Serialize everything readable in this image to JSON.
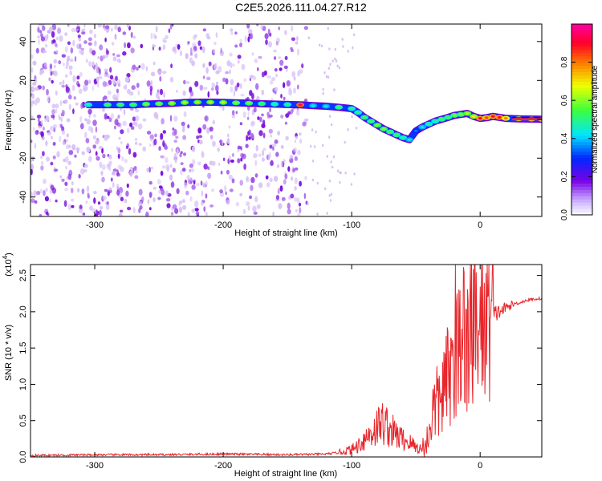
{
  "title": "C2E5.2026.111.04.27.R12",
  "colors": {
    "line": "#e8262b",
    "axis": "#000000",
    "track_low": "#7b00e0",
    "track_high": "#ff1a60"
  },
  "chart_data": [
    {
      "type": "heatmap",
      "xlabel": "Height of straight line (km)",
      "ylabel": "Frequency (Hz)",
      "xlim": [
        -350,
        48
      ],
      "ylim": [
        -50,
        49
      ],
      "xticks": [
        -300,
        -200,
        -100,
        0
      ],
      "xtick_labels": [
        "-300",
        "-200",
        "-100",
        "0"
      ],
      "yticks": [
        -40,
        -20,
        0,
        20,
        40
      ],
      "ytick_labels": [
        "-40",
        "-20",
        "0",
        "20",
        "40"
      ],
      "colorbar": {
        "label": "Normalized spectral amplitude",
        "range": [
          0,
          1
        ],
        "ticks": [
          0.0,
          0.2,
          0.4,
          0.6,
          0.8
        ],
        "tick_labels": [
          "0.0",
          "0.2",
          "0.4",
          "0.6",
          "0.8"
        ]
      },
      "track": {
        "x": [
          -305,
          -290,
          -280,
          -270,
          -260,
          -250,
          -240,
          -230,
          -220,
          -210,
          -200,
          -190,
          -180,
          -170,
          -160,
          -150,
          -140,
          -130,
          -120,
          -110,
          -100,
          -95,
          -90,
          -85,
          -80,
          -75,
          -70,
          -65,
          -60,
          -55,
          -50,
          -45,
          -40,
          -35,
          -30,
          -25,
          -20,
          -15,
          -10,
          -5,
          0,
          5,
          10,
          15,
          20,
          30,
          40,
          48
        ],
        "y": [
          7.5,
          7.5,
          7.5,
          7.5,
          7.8,
          8.0,
          8.2,
          8.6,
          8.8,
          8.8,
          8.7,
          8.5,
          8.3,
          8.0,
          7.8,
          7.6,
          7.4,
          7.0,
          6.7,
          6.2,
          5.5,
          3.5,
          1.0,
          -1.0,
          -3.0,
          -5.0,
          -6.5,
          -8.0,
          -9.5,
          -10.5,
          -6.0,
          -4.0,
          -2.5,
          -1.0,
          0.0,
          1.0,
          2.0,
          2.5,
          3.0,
          1.5,
          0.5,
          0.8,
          1.5,
          1.0,
          0.5,
          0.2,
          0.1,
          0.0
        ],
        "amplitude": [
          0.5,
          0.55,
          0.55,
          0.55,
          0.6,
          0.6,
          0.65,
          0.65,
          0.65,
          0.65,
          0.65,
          0.6,
          0.6,
          0.55,
          0.5,
          0.5,
          0.95,
          0.45,
          0.45,
          0.55,
          0.5,
          0.5,
          0.55,
          0.55,
          0.6,
          0.6,
          0.55,
          0.55,
          0.5,
          0.45,
          0.35,
          0.45,
          0.5,
          0.5,
          0.55,
          0.55,
          0.6,
          0.6,
          0.65,
          0.7,
          0.9,
          0.85,
          0.9,
          0.9,
          0.8,
          0.75,
          0.75,
          0.75
        ]
      }
    },
    {
      "type": "line",
      "xlabel": "Height of straight line (km)",
      "ylabel": "SNR (10 * v/v)",
      "scale_note": "(x10",
      "scale_exp": "4",
      "scale_close": ")",
      "xlim": [
        -350,
        48
      ],
      "ylim": [
        0,
        2.65
      ],
      "xticks": [
        -300,
        -200,
        -100,
        0
      ],
      "xtick_labels": [
        "-300",
        "-200",
        "-100",
        "0"
      ],
      "yticks": [
        0.0,
        0.5,
        1.0,
        1.5,
        2.0,
        2.5
      ],
      "ytick_labels": [
        "0.0",
        "0.5",
        "1.0",
        "1.5",
        "2.0",
        "2.5"
      ],
      "series": [
        {
          "name": "SNR",
          "x": [
            -350,
            -300,
            -250,
            -200,
            -150,
            -120,
            -110,
            -100,
            -95,
            -90,
            -85,
            -80,
            -75,
            -70,
            -65,
            -60,
            -55,
            -50,
            -45,
            -42,
            -40,
            -38,
            -35,
            -32,
            -30,
            -28,
            -25,
            -22,
            -20,
            -18,
            -15,
            -12,
            -10,
            -8,
            -5,
            -2,
            0,
            5,
            10,
            15,
            20,
            25,
            30,
            35,
            40,
            45,
            48
          ],
          "y": [
            0.02,
            0.03,
            0.03,
            0.04,
            0.03,
            0.04,
            0.06,
            0.1,
            0.16,
            0.25,
            0.33,
            0.42,
            0.48,
            0.38,
            0.3,
            0.24,
            0.2,
            0.14,
            0.1,
            0.15,
            0.35,
            0.55,
            0.7,
            0.75,
            0.85,
            0.95,
            1.1,
            1.2,
            1.3,
            1.5,
            1.65,
            1.7,
            1.5,
            1.7,
            1.75,
            1.8,
            1.85,
            1.9,
            1.95,
            2.0,
            2.05,
            2.1,
            2.12,
            2.15,
            2.17,
            2.18,
            2.18
          ]
        }
      ]
    }
  ]
}
